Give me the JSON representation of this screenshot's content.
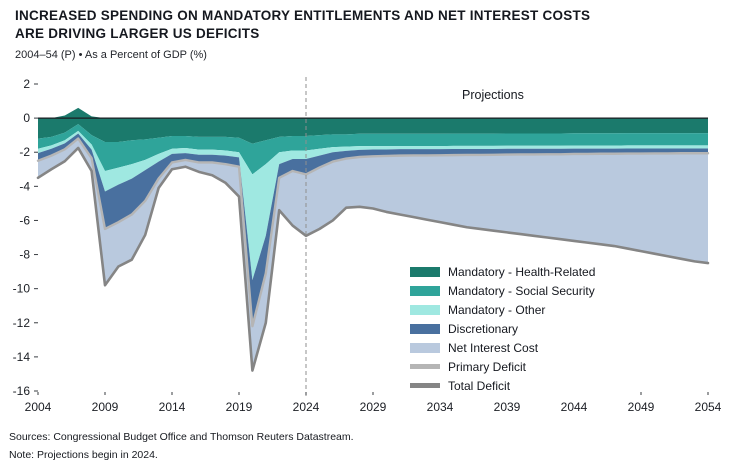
{
  "chart_data": {
    "type": "area",
    "description": "Stacked area chart of deficit components (stacked downward from zero) with overlay lines for primary and total deficit",
    "title_line1": "INCREASED SPENDING ON MANDATORY ENTITLEMENTS AND NET INTEREST COSTS",
    "title_line2": "ARE DRIVING LARGER US DEFICITS",
    "subtitle": "2004–54 (P) • As a Percent of GDP (%)",
    "annotation": "Projections",
    "projections_start_year": 2024,
    "xlim": [
      2004,
      2054
    ],
    "ylim": [
      -16,
      2
    ],
    "x_ticks": [
      2004,
      2009,
      2014,
      2019,
      2024,
      2029,
      2034,
      2039,
      2044,
      2049,
      2054
    ],
    "y_ticks": [
      2,
      0,
      -2,
      -4,
      -6,
      -8,
      -10,
      -12,
      -14,
      -16
    ],
    "grid": "none (zero axis line only)",
    "legend_position": "inside lower right",
    "zero_line_color": "#1a1d22",
    "dashed_line_color": "#8f8f8f",
    "years": [
      2004,
      2005,
      2006,
      2007,
      2008,
      2009,
      2010,
      2011,
      2012,
      2013,
      2014,
      2015,
      2016,
      2017,
      2018,
      2019,
      2020,
      2021,
      2022,
      2023,
      2024,
      2025,
      2026,
      2027,
      2028,
      2029,
      2030,
      2031,
      2032,
      2033,
      2034,
      2035,
      2036,
      2037,
      2038,
      2039,
      2040,
      2041,
      2042,
      2043,
      2044,
      2045,
      2046,
      2047,
      2048,
      2049,
      2050,
      2051,
      2052,
      2053,
      2054
    ],
    "top_offset": [
      0,
      0,
      0.15,
      0.6,
      0.1,
      0,
      0,
      0,
      0,
      0,
      0,
      0,
      0,
      0,
      0,
      0,
      0,
      0,
      0,
      0,
      0,
      0,
      0,
      0,
      0,
      0,
      0,
      0,
      0,
      0,
      0,
      0,
      0,
      0,
      0,
      0,
      0,
      0,
      0,
      0,
      0,
      0,
      0,
      0,
      0,
      0,
      0,
      0,
      0,
      0,
      0
    ],
    "series": [
      {
        "name": "Mandatory - Health-Related",
        "color": "#1b7a6c",
        "values": [
          1.2,
          1.1,
          1.0,
          0.95,
          1.1,
          1.4,
          1.4,
          1.3,
          1.25,
          1.15,
          1.05,
          1.05,
          1.1,
          1.1,
          1.1,
          1.15,
          1.5,
          1.3,
          1.1,
          1.05,
          1.05,
          1.0,
          0.95,
          0.95,
          0.92,
          0.92,
          0.92,
          0.92,
          0.92,
          0.92,
          0.92,
          0.91,
          0.91,
          0.91,
          0.91,
          0.9,
          0.9,
          0.9,
          0.9,
          0.9,
          0.89,
          0.89,
          0.89,
          0.89,
          0.88,
          0.88,
          0.88,
          0.88,
          0.88,
          0.88,
          0.88
        ]
      },
      {
        "name": "Mandatory - Social Security",
        "color": "#2fa49a",
        "values": [
          0.6,
          0.5,
          0.45,
          0.4,
          0.55,
          1.7,
          1.5,
          1.4,
          1.2,
          0.95,
          0.75,
          0.7,
          0.75,
          0.75,
          0.8,
          0.85,
          1.8,
          1.4,
          0.9,
          0.85,
          0.85,
          0.8,
          0.75,
          0.72,
          0.72,
          0.72,
          0.72,
          0.72,
          0.72,
          0.72,
          0.72,
          0.72,
          0.72,
          0.72,
          0.72,
          0.72,
          0.72,
          0.72,
          0.72,
          0.72,
          0.72,
          0.72,
          0.72,
          0.72,
          0.72,
          0.72,
          0.72,
          0.72,
          0.72,
          0.72,
          0.72
        ]
      },
      {
        "name": "Mandatory - Other",
        "color": "#9fe8e1",
        "values": [
          0.25,
          0.2,
          0.18,
          0.15,
          0.3,
          1.2,
          1.0,
          0.85,
          0.6,
          0.45,
          0.3,
          0.3,
          0.3,
          0.3,
          0.3,
          0.3,
          6.2,
          4.2,
          0.7,
          0.5,
          0.5,
          0.4,
          0.3,
          0.25,
          0.22,
          0.2,
          0.2,
          0.18,
          0.18,
          0.18,
          0.18,
          0.18,
          0.18,
          0.18,
          0.18,
          0.18,
          0.18,
          0.18,
          0.18,
          0.18,
          0.18,
          0.18,
          0.18,
          0.18,
          0.18,
          0.18,
          0.18,
          0.18,
          0.18,
          0.18,
          0.18
        ]
      },
      {
        "name": "Discretionary",
        "color": "#49709f",
        "values": [
          0.45,
          0.4,
          0.35,
          0.3,
          0.5,
          2.2,
          2.2,
          2.1,
          1.8,
          1.0,
          0.5,
          0.4,
          0.45,
          0.45,
          0.5,
          0.55,
          2.7,
          2.2,
          0.8,
          0.7,
          0.9,
          0.7,
          0.55,
          0.45,
          0.42,
          0.4,
          0.38,
          0.38,
          0.37,
          0.37,
          0.36,
          0.36,
          0.35,
          0.35,
          0.34,
          0.34,
          0.33,
          0.33,
          0.32,
          0.32,
          0.31,
          0.31,
          0.3,
          0.3,
          0.3,
          0.3,
          0.29,
          0.29,
          0.28,
          0.28,
          0.28
        ]
      },
      {
        "name": "Net Interest Cost",
        "color": "#b9c9de",
        "values": [
          1.0,
          0.8,
          0.7,
          0.55,
          0.75,
          3.3,
          2.6,
          2.65,
          2.0,
          0.55,
          0.4,
          0.4,
          0.55,
          0.75,
          1.1,
          1.75,
          2.6,
          2.9,
          1.9,
          3.2,
          3.6,
          3.6,
          3.45,
          2.88,
          2.92,
          3.06,
          3.28,
          3.45,
          3.61,
          3.76,
          3.92,
          4.08,
          4.24,
          4.34,
          4.45,
          4.56,
          4.67,
          4.77,
          4.88,
          4.98,
          5.1,
          5.2,
          5.31,
          5.41,
          5.57,
          5.72,
          5.88,
          6.03,
          6.19,
          6.34,
          6.44
        ]
      }
    ],
    "lines": [
      {
        "name": "Primary Deficit",
        "color": "#b5b5b5",
        "width": 2.4,
        "values": [
          -2.5,
          -2.2,
          -1.83,
          -1.2,
          -2.35,
          -6.5,
          -6.1,
          -5.65,
          -4.85,
          -3.55,
          -2.6,
          -2.45,
          -2.6,
          -2.6,
          -2.7,
          -2.85,
          -12.2,
          -9.1,
          -3.5,
          -3.1,
          -3.3,
          -2.9,
          -2.55,
          -2.37,
          -2.28,
          -2.24,
          -2.22,
          -2.2,
          -2.19,
          -2.19,
          -2.18,
          -2.17,
          -2.16,
          -2.16,
          -2.15,
          -2.14,
          -2.13,
          -2.13,
          -2.12,
          -2.12,
          -2.1,
          -2.1,
          -2.09,
          -2.09,
          -2.08,
          -2.08,
          -2.07,
          -2.07,
          -2.06,
          -2.06,
          -2.06
        ]
      },
      {
        "name": "Total Deficit",
        "color": "#858585",
        "width": 2.6,
        "values": [
          -3.5,
          -3.0,
          -2.53,
          -1.75,
          -3.1,
          -9.8,
          -8.7,
          -8.3,
          -6.85,
          -4.1,
          -3.0,
          -2.85,
          -3.15,
          -3.35,
          -3.8,
          -4.6,
          -14.8,
          -12.0,
          -5.4,
          -6.3,
          -6.9,
          -6.5,
          -6.0,
          -5.25,
          -5.2,
          -5.3,
          -5.5,
          -5.65,
          -5.8,
          -5.95,
          -6.1,
          -6.25,
          -6.4,
          -6.5,
          -6.6,
          -6.7,
          -6.8,
          -6.9,
          -7.0,
          -7.1,
          -7.2,
          -7.3,
          -7.4,
          -7.5,
          -7.65,
          -7.8,
          -7.95,
          -8.1,
          -8.25,
          -8.4,
          -8.5
        ]
      }
    ]
  },
  "footer": {
    "sources": "Sources: Congressional Budget Office and Thomson Reuters Datastream.",
    "note": "Note: Projections begin in 2024."
  }
}
